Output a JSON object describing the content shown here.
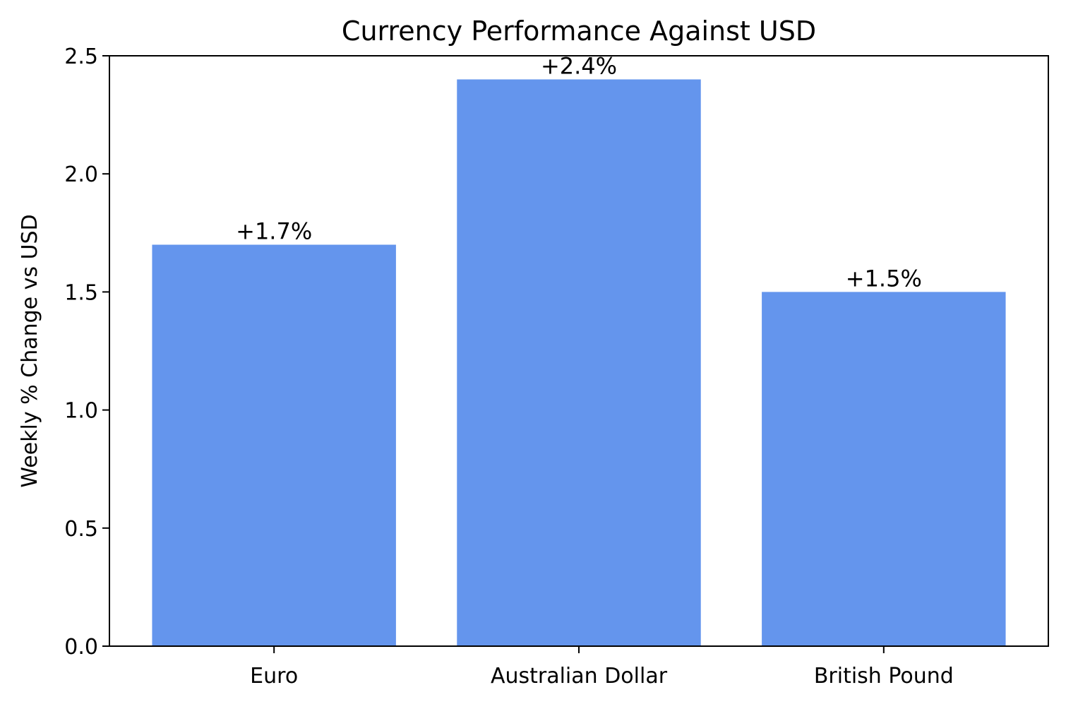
{
  "chart_data": {
    "type": "bar",
    "title": "Currency Performance Against USD",
    "xlabel": "",
    "ylabel": "Weekly % Change vs USD",
    "categories": [
      "Euro",
      "Australian Dollar",
      "British Pound"
    ],
    "values": [
      1.7,
      2.4,
      1.5
    ],
    "data_labels": [
      "+1.7%",
      "+2.4%",
      "+1.5%"
    ],
    "ylim": [
      0,
      2.5
    ],
    "yticks": [
      0.0,
      0.5,
      1.0,
      1.5,
      2.0,
      2.5
    ],
    "ytick_labels": [
      "0.0",
      "0.5",
      "1.0",
      "1.5",
      "2.0",
      "2.5"
    ],
    "grid": false,
    "legend": "none",
    "bar_color": "#6495ED"
  }
}
